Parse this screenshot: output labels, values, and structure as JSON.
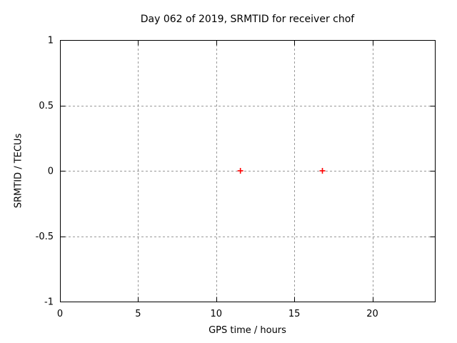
{
  "chart_data": {
    "type": "scatter",
    "title": "Day 062 of 2019, SRMTID for receiver chof",
    "xlabel": "GPS time / hours",
    "ylabel": "SRMTID / TECUs",
    "xlim": [
      0,
      24
    ],
    "ylim": [
      -1,
      1
    ],
    "xticks": [
      0,
      5,
      10,
      15,
      20
    ],
    "yticks": [
      1,
      0.5,
      0,
      -0.5,
      -1
    ],
    "grid": true,
    "legend_position": "none",
    "series": [
      {
        "name": "SRMTID",
        "marker": "plus",
        "color": "#ff0000",
        "points": [
          [
            11.55,
            0
          ],
          [
            16.8,
            0
          ]
        ]
      }
    ],
    "colors": {
      "background": "#ffffff",
      "axis": "#000000",
      "grid": "#999999",
      "text": "#000000",
      "marker": "#ff0000"
    }
  }
}
